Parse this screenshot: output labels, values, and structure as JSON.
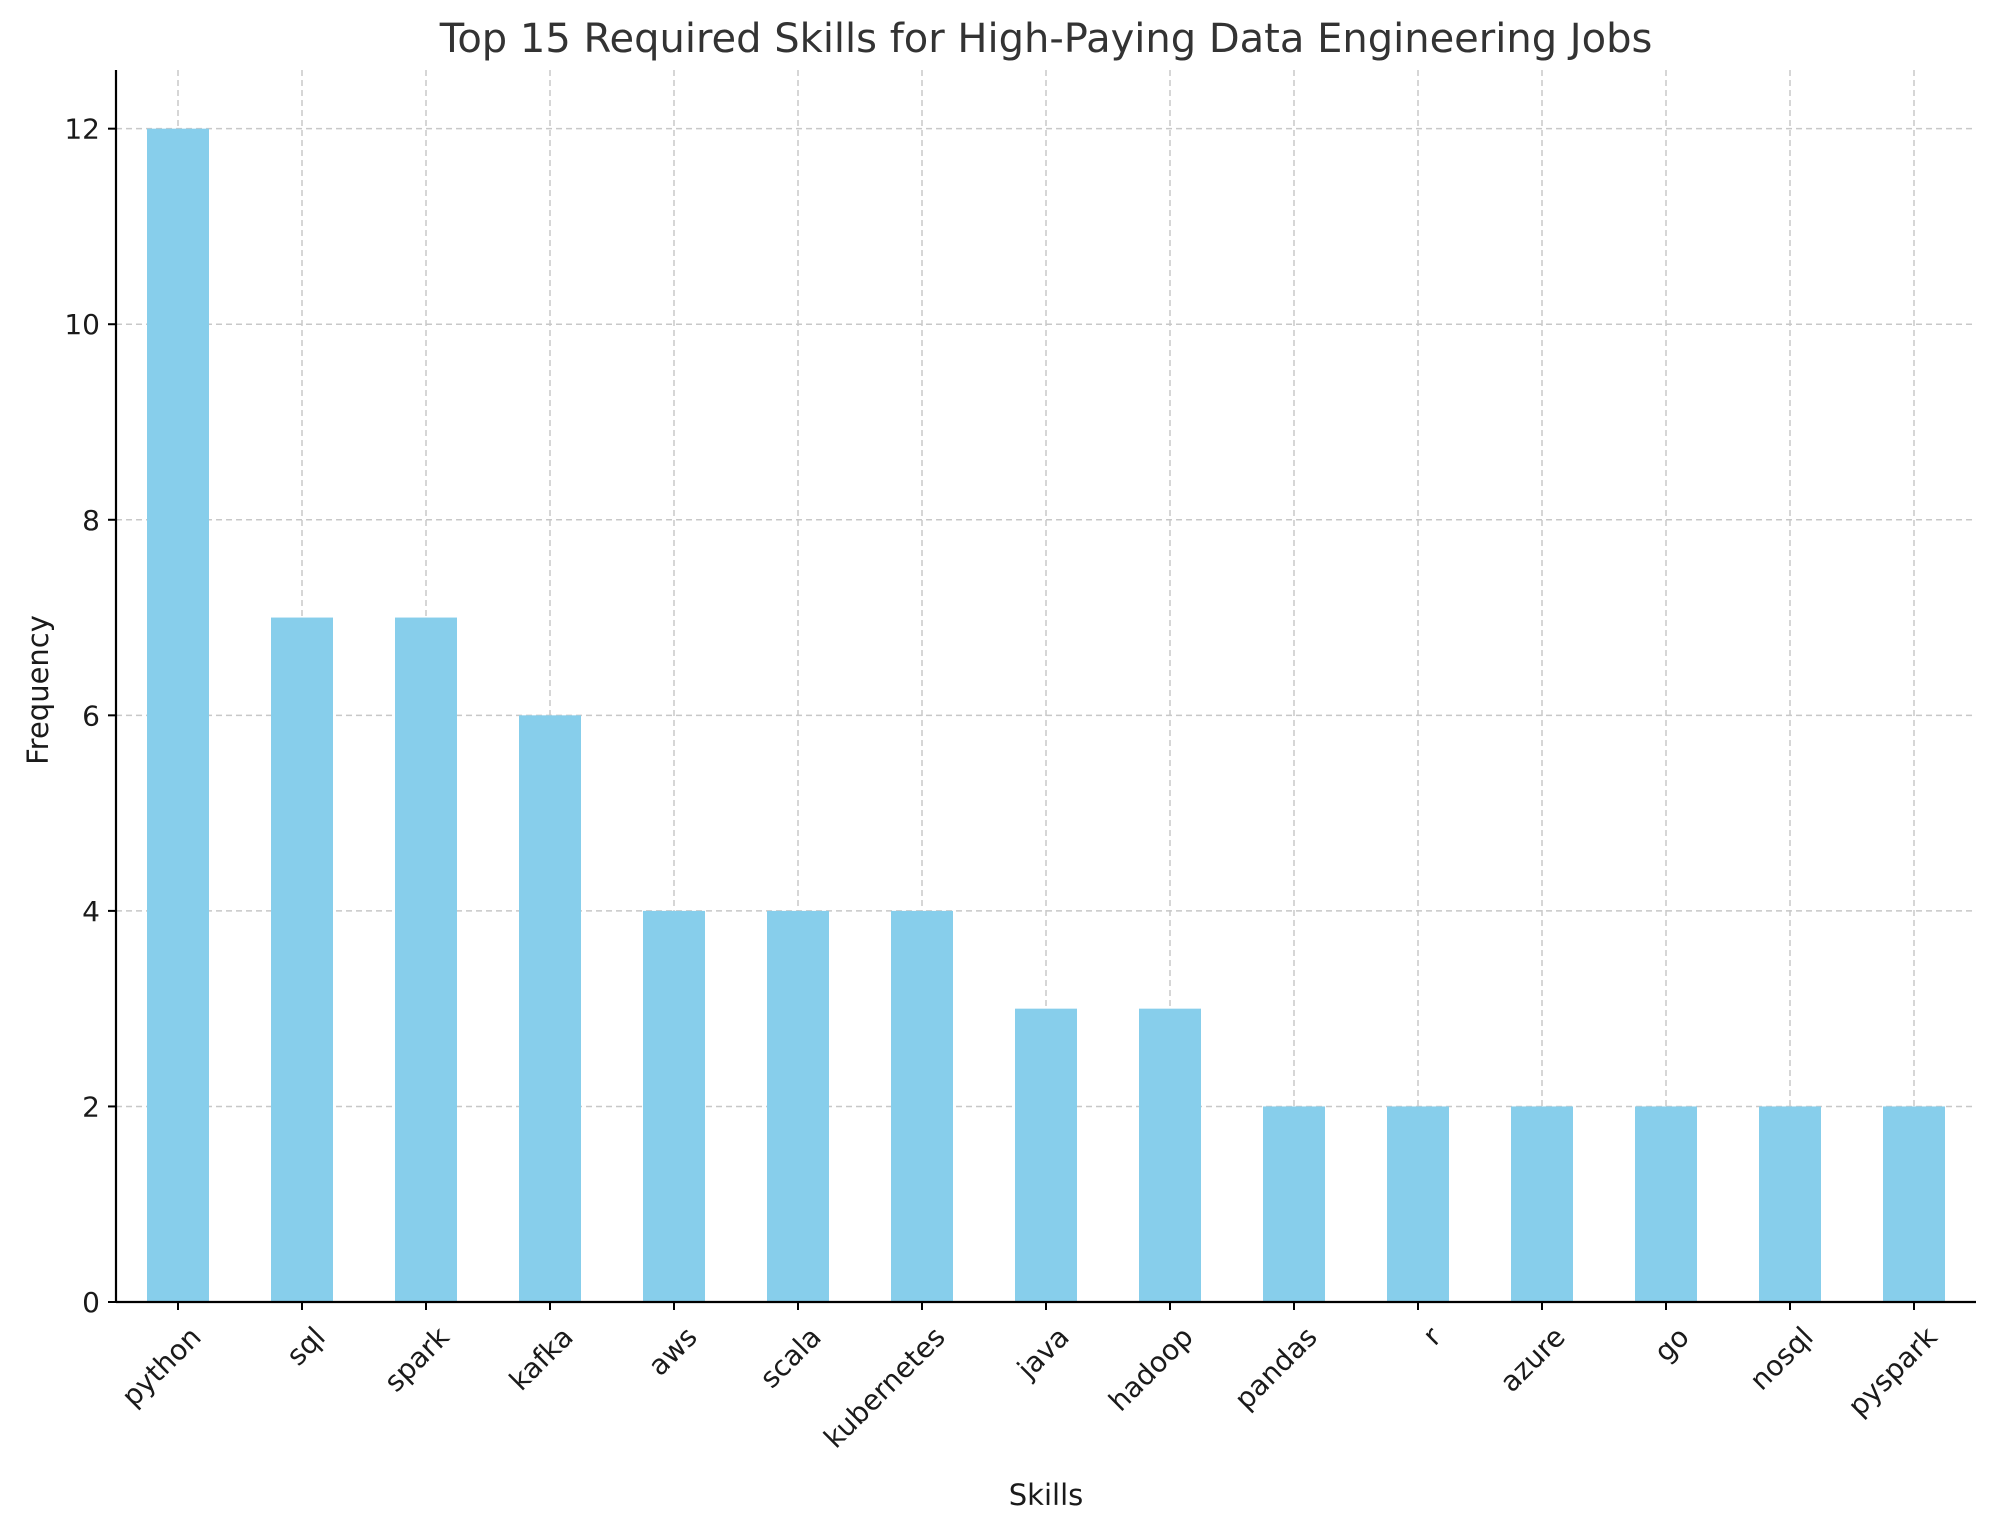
{
  "chart_data": {
    "type": "bar",
    "title": "Top 15 Required Skills for High-Paying Data Engineering Jobs",
    "xlabel": "Skills",
    "ylabel": "Frequency",
    "categories": [
      "python",
      "sql",
      "spark",
      "kafka",
      "aws",
      "scala",
      "kubernetes",
      "java",
      "hadoop",
      "pandas",
      "r",
      "azure",
      "go",
      "nosql",
      "pyspark"
    ],
    "values": [
      12,
      7,
      7,
      6,
      4,
      4,
      4,
      3,
      3,
      2,
      2,
      2,
      2,
      2,
      2
    ],
    "ylim": [
      0,
      12.6
    ],
    "yticks": [
      0,
      2,
      4,
      6,
      8,
      10,
      12
    ],
    "grid": true,
    "bar_color": "#87ceeb",
    "legend": "none"
  }
}
